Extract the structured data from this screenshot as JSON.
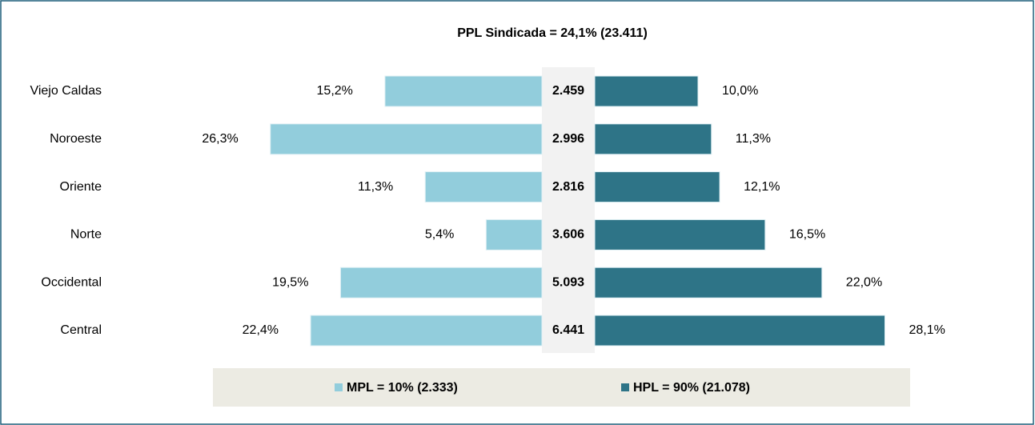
{
  "chart_data": {
    "type": "butterfly",
    "title": "PPL Sindicada = 24,1% (23.411)",
    "categories": [
      "Viejo Caldas",
      "Noroeste",
      "Oriente",
      "Norte",
      "Occidental",
      "Central"
    ],
    "totals": [
      2459,
      2996,
      2816,
      3606,
      5093,
      6441
    ],
    "totals_labels": [
      "2.459",
      "2.996",
      "2.816",
      "3.606",
      "5.093",
      "6.441"
    ],
    "series": [
      {
        "name": "MPL = 10% (2.333)",
        "color": "#92cddc",
        "side": "left",
        "values": [
          15.2,
          26.3,
          11.3,
          5.4,
          19.5,
          22.4
        ],
        "value_labels": [
          "15,2%",
          "26,3%",
          "11,3%",
          "5,4%",
          "19,5%",
          "22,4%"
        ]
      },
      {
        "name": "HPL = 90% (21.078)",
        "color": "#2e7487",
        "side": "right",
        "values": [
          10.0,
          11.3,
          12.1,
          16.5,
          22.0,
          28.1
        ],
        "value_labels": [
          "10,0%",
          "11,3%",
          "12,1%",
          "16,5%",
          "22,0%",
          "28,1%"
        ]
      }
    ]
  }
}
